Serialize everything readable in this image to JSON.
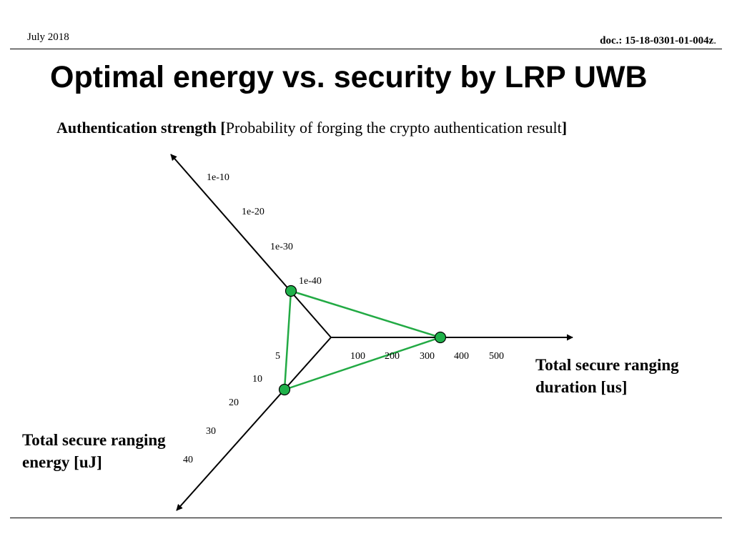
{
  "header": {
    "date": "July 2018",
    "doc_id": "doc.: 15-18-0301-01-004z",
    "doc_suffix": "."
  },
  "title": "Optimal energy vs. security by LRP UWB",
  "subtitle": {
    "bold_prefix": "Authentication strength [",
    "text": "Probability of forging the crypto authentication result",
    "bold_suffix": "]"
  },
  "axes": {
    "authentication": {
      "ticks": [
        "1e-10",
        "1e-20",
        "1e-30",
        "1e-40"
      ]
    },
    "duration": {
      "label_line1": "Total secure ranging",
      "label_line2": "duration [us]",
      "ticks": [
        "100",
        "200",
        "300",
        "400",
        "500"
      ]
    },
    "energy": {
      "label_line1": "Total secure ranging",
      "label_line2": "energy [uJ]",
      "ticks": [
        "5",
        "10",
        "20",
        "30",
        "40"
      ]
    }
  },
  "optimal_point": {
    "authentication": "1e-40",
    "duration_us": 330,
    "energy_uJ": 10
  },
  "colors": {
    "polygon": "#22aa44",
    "point_fill": "#1fb14a",
    "axes": "#000000"
  }
}
